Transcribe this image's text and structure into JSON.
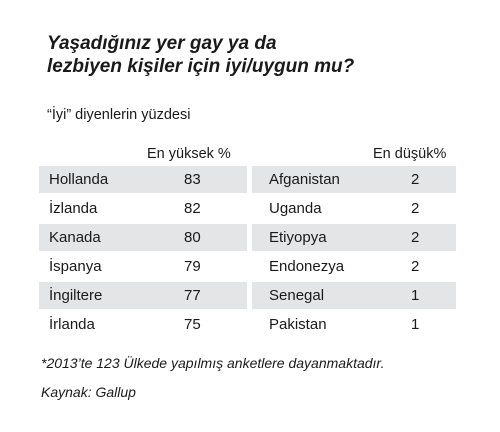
{
  "chart_data": {
    "type": "table",
    "title_lines": [
      "Yaşadığınız yer gay ya da",
      "lezbiyen kişiler için iyi/uygun mu?"
    ],
    "subtitle": "“İyi” diyenlerin yüzdesi",
    "highest": {
      "header": "En yüksek %",
      "rows": [
        {
          "country": "Hollanda",
          "value": "83"
        },
        {
          "country": "İzlanda",
          "value": "82"
        },
        {
          "country": "Kanada",
          "value": "80"
        },
        {
          "country": "İspanya",
          "value": "79"
        },
        {
          "country": "İngiltere",
          "value": "77"
        },
        {
          "country": "İrlanda",
          "value": "75"
        }
      ]
    },
    "lowest": {
      "header": "En düşük%",
      "rows": [
        {
          "country": "Afganistan",
          "value": "2"
        },
        {
          "country": "Uganda",
          "value": "2"
        },
        {
          "country": "Etiyopya",
          "value": "2"
        },
        {
          "country": "Endonezya",
          "value": "2"
        },
        {
          "country": "Senegal",
          "value": "1"
        },
        {
          "country": "Pakistan",
          "value": "1"
        }
      ]
    },
    "footnote": "*2013’te 123 Ülkede yapılmış anketlere dayanmaktadır.",
    "source": "Kaynak: Gallup",
    "row_shading_color": "#e4e5e7"
  }
}
